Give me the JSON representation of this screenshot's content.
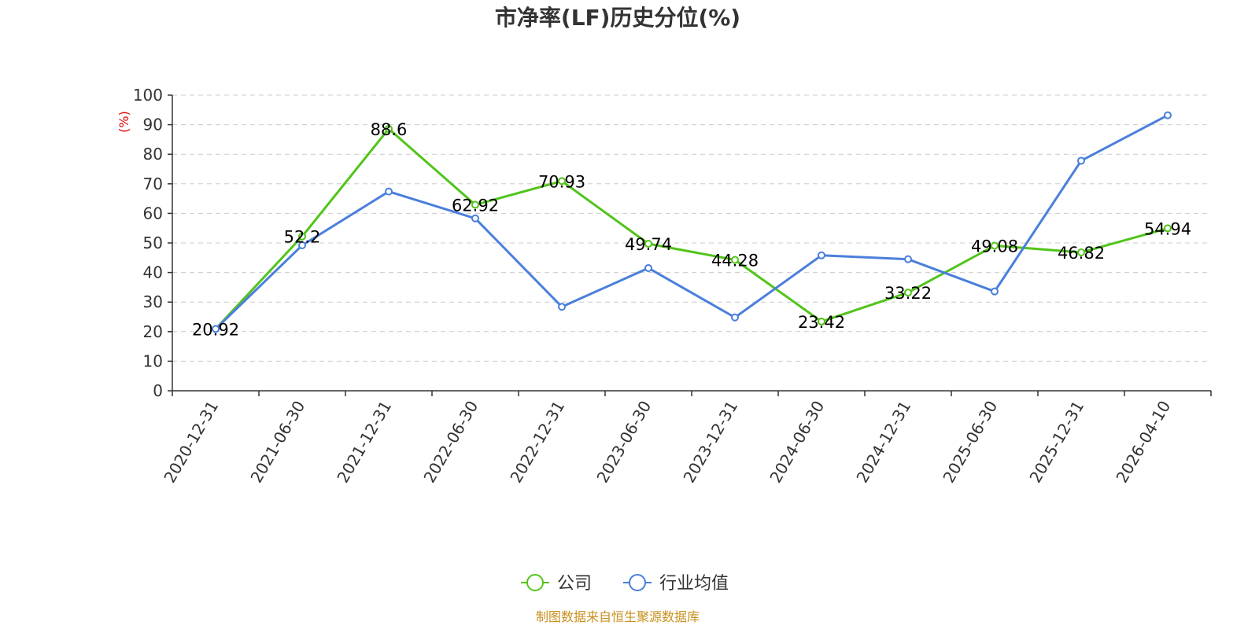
{
  "chart_data": {
    "type": "line",
    "title": "市净率(LF)历史分位(%)",
    "ylabel": "(%)",
    "ylim": [
      0,
      100
    ],
    "yticks": [
      0,
      10,
      20,
      30,
      40,
      50,
      60,
      70,
      80,
      90,
      100
    ],
    "categories": [
      "2020-12-31",
      "2021-06-30",
      "2021-12-31",
      "2022-06-30",
      "2022-12-31",
      "2023-06-30",
      "2023-12-31",
      "2024-06-30",
      "2024-12-31",
      "2025-06-30",
      "2025-12-31",
      "2026-04-10"
    ],
    "grid": true,
    "legend_position": "bottom-center",
    "series": [
      {
        "name": "公司",
        "color": "#52c41a",
        "values": [
          20.92,
          52.2,
          88.6,
          62.92,
          70.93,
          49.74,
          44.28,
          23.42,
          33.22,
          49.08,
          46.82,
          54.94
        ],
        "labels": [
          "20.92",
          "52.2",
          "88.6",
          "62.92",
          "70.93",
          "49.74",
          "44.28",
          "23.42",
          "33.22",
          "49.08",
          "46.82",
          "54.94"
        ]
      },
      {
        "name": "行业均值",
        "color": "#4a7fdc",
        "values": [
          20.9,
          49.2,
          67.4,
          58.3,
          28.4,
          41.5,
          24.8,
          45.8,
          44.5,
          33.6,
          77.8,
          93.2
        ]
      }
    ]
  },
  "colors": {
    "axis": "#333333",
    "grid": "#cccccc",
    "ylabel": "#e00000",
    "source": "#c8901e"
  },
  "source_text": "制图数据来自恒生聚源数据库"
}
